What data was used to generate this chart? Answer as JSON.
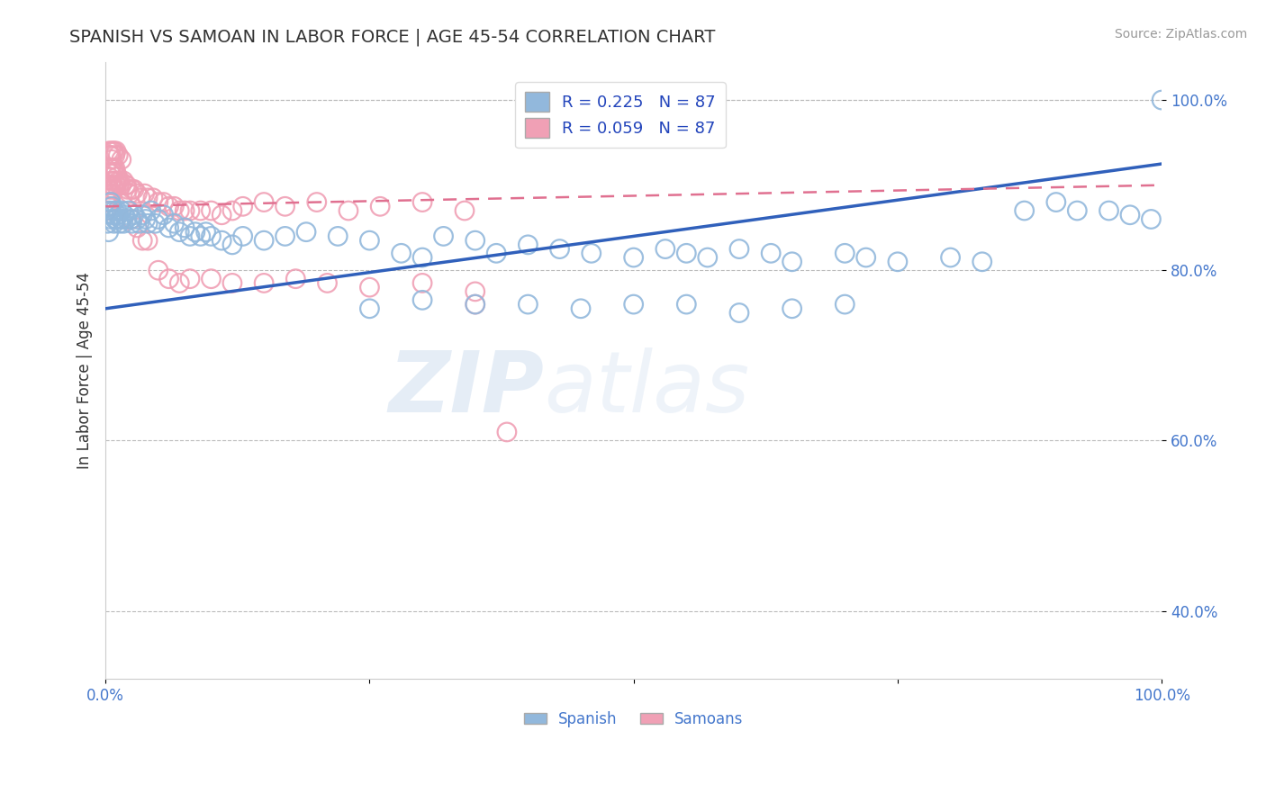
{
  "title": "SPANISH VS SAMOAN IN LABOR FORCE | AGE 45-54 CORRELATION CHART",
  "source": "Source: ZipAtlas.com",
  "ylabel": "In Labor Force | Age 45-54",
  "xlim": [
    0.0,
    1.0
  ],
  "ylim": [
    0.32,
    1.045
  ],
  "yticks": [
    0.4,
    0.6,
    0.8,
    1.0
  ],
  "ytick_labels": [
    "40.0%",
    "60.0%",
    "80.0%",
    "100.0%"
  ],
  "legend_r_spanish": "R = 0.225",
  "legend_n_spanish": "N = 87",
  "legend_r_samoan": "R = 0.059",
  "legend_n_samoan": "N = 87",
  "blue_color": "#92b8dc",
  "pink_color": "#f0a0b5",
  "blue_line_color": "#3060bb",
  "pink_line_color": "#e07090",
  "grid_color": "#bbbbbb",
  "blue_line_y0": 0.755,
  "blue_line_y1": 0.925,
  "pink_line_y0": 0.875,
  "pink_line_y1": 0.9,
  "blue_x": [
    0.002,
    0.003,
    0.004,
    0.005,
    0.005,
    0.006,
    0.007,
    0.008,
    0.008,
    0.009,
    0.01,
    0.011,
    0.012,
    0.013,
    0.014,
    0.015,
    0.016,
    0.017,
    0.018,
    0.02,
    0.022,
    0.024,
    0.025,
    0.027,
    0.03,
    0.032,
    0.035,
    0.038,
    0.04,
    0.043,
    0.047,
    0.05,
    0.055,
    0.06,
    0.065,
    0.07,
    0.075,
    0.08,
    0.085,
    0.09,
    0.095,
    0.1,
    0.11,
    0.12,
    0.13,
    0.15,
    0.17,
    0.19,
    0.22,
    0.25,
    0.28,
    0.3,
    0.32,
    0.35,
    0.37,
    0.4,
    0.43,
    0.46,
    0.5,
    0.53,
    0.55,
    0.57,
    0.6,
    0.63,
    0.65,
    0.7,
    0.72,
    0.75,
    0.8,
    0.83,
    0.87,
    0.9,
    0.92,
    0.95,
    0.97,
    0.99,
    1.0,
    0.25,
    0.3,
    0.35,
    0.4,
    0.45,
    0.5,
    0.55,
    0.6,
    0.65,
    0.7
  ],
  "blue_y": [
    0.855,
    0.845,
    0.87,
    0.86,
    0.88,
    0.875,
    0.865,
    0.87,
    0.855,
    0.86,
    0.86,
    0.87,
    0.865,
    0.855,
    0.86,
    0.87,
    0.86,
    0.855,
    0.865,
    0.86,
    0.87,
    0.86,
    0.855,
    0.865,
    0.86,
    0.855,
    0.865,
    0.86,
    0.855,
    0.87,
    0.855,
    0.86,
    0.865,
    0.85,
    0.855,
    0.845,
    0.85,
    0.84,
    0.845,
    0.84,
    0.845,
    0.84,
    0.835,
    0.83,
    0.84,
    0.835,
    0.84,
    0.845,
    0.84,
    0.835,
    0.82,
    0.815,
    0.84,
    0.835,
    0.82,
    0.83,
    0.825,
    0.82,
    0.815,
    0.825,
    0.82,
    0.815,
    0.825,
    0.82,
    0.81,
    0.82,
    0.815,
    0.81,
    0.815,
    0.81,
    0.87,
    0.88,
    0.87,
    0.87,
    0.865,
    0.86,
    1.0,
    0.755,
    0.765,
    0.76,
    0.76,
    0.755,
    0.76,
    0.76,
    0.75,
    0.755,
    0.76
  ],
  "pink_x": [
    0.001,
    0.002,
    0.002,
    0.003,
    0.003,
    0.003,
    0.004,
    0.004,
    0.004,
    0.005,
    0.005,
    0.005,
    0.005,
    0.006,
    0.006,
    0.007,
    0.007,
    0.008,
    0.008,
    0.009,
    0.009,
    0.01,
    0.01,
    0.011,
    0.012,
    0.013,
    0.014,
    0.015,
    0.017,
    0.019,
    0.021,
    0.023,
    0.025,
    0.027,
    0.03,
    0.033,
    0.037,
    0.04,
    0.045,
    0.05,
    0.055,
    0.06,
    0.065,
    0.07,
    0.075,
    0.08,
    0.09,
    0.1,
    0.11,
    0.12,
    0.13,
    0.15,
    0.17,
    0.2,
    0.23,
    0.26,
    0.3,
    0.34,
    0.003,
    0.004,
    0.005,
    0.006,
    0.007,
    0.008,
    0.009,
    0.01,
    0.012,
    0.015,
    0.02,
    0.025,
    0.03,
    0.035,
    0.04,
    0.05,
    0.06,
    0.07,
    0.08,
    0.1,
    0.12,
    0.15,
    0.18,
    0.21,
    0.25,
    0.3,
    0.35,
    0.35,
    0.38
  ],
  "pink_y": [
    0.87,
    0.88,
    0.9,
    0.875,
    0.89,
    0.91,
    0.88,
    0.895,
    0.915,
    0.885,
    0.9,
    0.92,
    0.935,
    0.89,
    0.905,
    0.9,
    0.92,
    0.895,
    0.915,
    0.905,
    0.92,
    0.9,
    0.915,
    0.91,
    0.905,
    0.9,
    0.905,
    0.9,
    0.905,
    0.9,
    0.895,
    0.89,
    0.895,
    0.895,
    0.89,
    0.885,
    0.89,
    0.885,
    0.885,
    0.88,
    0.88,
    0.875,
    0.875,
    0.87,
    0.87,
    0.87,
    0.87,
    0.87,
    0.865,
    0.87,
    0.875,
    0.88,
    0.875,
    0.88,
    0.87,
    0.875,
    0.88,
    0.87,
    0.94,
    0.935,
    0.94,
    0.93,
    0.94,
    0.94,
    0.935,
    0.94,
    0.935,
    0.93,
    0.9,
    0.86,
    0.85,
    0.835,
    0.835,
    0.8,
    0.79,
    0.785,
    0.79,
    0.79,
    0.785,
    0.785,
    0.79,
    0.785,
    0.78,
    0.785,
    0.775,
    0.76,
    0.61
  ]
}
